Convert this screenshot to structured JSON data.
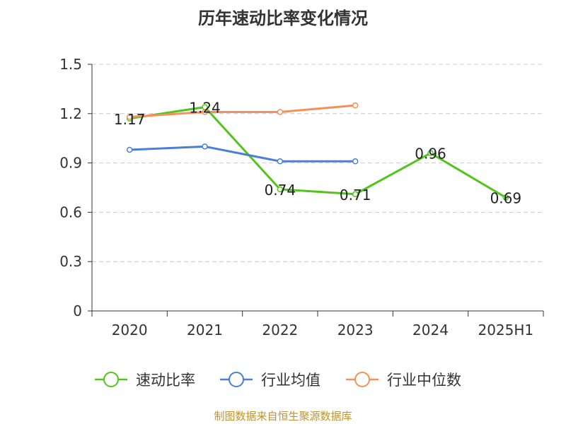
{
  "chart_data": {
    "type": "line",
    "title": "历年速动比率变化情况",
    "categories": [
      "2020",
      "2021",
      "2022",
      "2023",
      "2024",
      "2025H1"
    ],
    "y_ticks": [
      "0",
      "0.3",
      "0.6",
      "0.9",
      "1.2",
      "1.5"
    ],
    "ylim": [
      0,
      1.5
    ],
    "grid": true,
    "legend_position": "bottom",
    "series": [
      {
        "name": "速动比率",
        "color": "#52c41a",
        "values": [
          1.17,
          1.24,
          0.74,
          0.71,
          0.96,
          0.69
        ],
        "labels": [
          "1.17",
          "1.24",
          "0.74",
          "0.71",
          "0.96",
          "0.69"
        ]
      },
      {
        "name": "行业均值",
        "color": "#4a7fd6",
        "values": [
          0.98,
          1.0,
          0.91,
          0.91,
          null,
          null
        ]
      },
      {
        "name": "行业中位数",
        "color": "#f4915a",
        "values": [
          1.18,
          1.21,
          1.21,
          1.25,
          null,
          null
        ]
      }
    ]
  },
  "footer": {
    "source": "制图数据来自恒生聚源数据库"
  }
}
